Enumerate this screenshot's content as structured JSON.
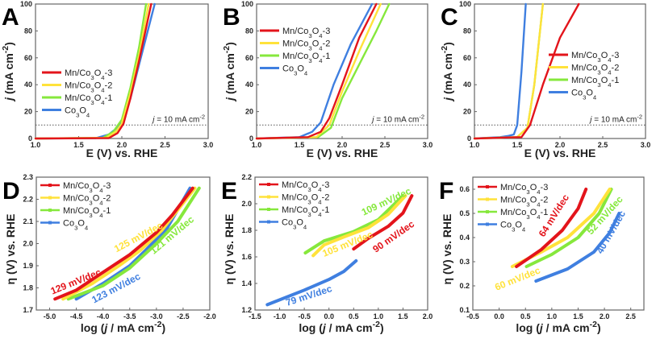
{
  "colors": {
    "Mn/Co3O4-3": "#e3141b",
    "Mn/Co3O4-2": "#ffe23a",
    "Mn/Co3O4-1": "#86e83c",
    "Co3O4": "#3f7fe0"
  },
  "chart_data": [
    {
      "panel": "A",
      "type": "line",
      "xlabel": "E (V) vs. RHE",
      "ylabel": "j (mA cm-2)",
      "xlim": [
        1.0,
        3.0
      ],
      "ylim": [
        0,
        100
      ],
      "xticks": [
        "1.0",
        "1.5",
        "2.0",
        "2.5",
        "3.0"
      ],
      "yticks": [
        "0",
        "20",
        "40",
        "60",
        "80",
        "100"
      ],
      "reference": {
        "y": 10,
        "label": "j = 10 mA cm-2"
      },
      "legend": "middle-left",
      "series": [
        {
          "name": "Mn/Co3O4-3",
          "points": [
            [
              1.0,
              0
            ],
            [
              1.85,
              0.3
            ],
            [
              1.95,
              4
            ],
            [
              2.02,
              11
            ],
            [
              2.1,
              30
            ],
            [
              2.2,
              58
            ],
            [
              2.34,
              100
            ]
          ]
        },
        {
          "name": "Mn/Co3O4-2",
          "points": [
            [
              1.0,
              0
            ],
            [
              1.82,
              0.5
            ],
            [
              1.93,
              5
            ],
            [
              2.0,
              11
            ],
            [
              2.1,
              34
            ],
            [
              2.2,
              62
            ],
            [
              2.31,
              100
            ]
          ]
        },
        {
          "name": "Mn/Co3O4-1",
          "points": [
            [
              1.0,
              0
            ],
            [
              1.78,
              0.5
            ],
            [
              1.9,
              5
            ],
            [
              2.0,
              14
            ],
            [
              2.1,
              38
            ],
            [
              2.2,
              68
            ],
            [
              2.28,
              100
            ]
          ]
        },
        {
          "name": "Co3O4",
          "points": [
            [
              1.0,
              0
            ],
            [
              1.7,
              0.3
            ],
            [
              1.85,
              3
            ],
            [
              1.95,
              8
            ],
            [
              2.0,
              12
            ],
            [
              2.1,
              30
            ],
            [
              2.2,
              55
            ],
            [
              2.3,
              80
            ],
            [
              2.38,
              100
            ]
          ]
        }
      ]
    },
    {
      "panel": "B",
      "type": "line",
      "xlabel": "E (V) vs. RHE",
      "ylabel": "j (mA cm-2)",
      "xlim": [
        1.0,
        3.0
      ],
      "ylim": [
        0,
        100
      ],
      "xticks": [
        "1.0",
        "1.5",
        "2.0",
        "2.5",
        "3.0"
      ],
      "yticks": [
        "0",
        "20",
        "40",
        "60",
        "80",
        "100"
      ],
      "reference": {
        "y": 10,
        "label": "j = 10 mA cm-2"
      },
      "legend": "top-left",
      "series": [
        {
          "name": "Mn/Co3O4-3",
          "points": [
            [
              1.0,
              0
            ],
            [
              1.6,
              1
            ],
            [
              1.75,
              5
            ],
            [
              1.85,
              15
            ],
            [
              2.0,
              40
            ],
            [
              2.2,
              75
            ],
            [
              2.4,
              100
            ]
          ]
        },
        {
          "name": "Mn/Co3O4-2",
          "points": [
            [
              1.0,
              0
            ],
            [
              1.7,
              1
            ],
            [
              1.85,
              10
            ],
            [
              2.0,
              35
            ],
            [
              2.2,
              65
            ],
            [
              2.45,
              100
            ]
          ]
        },
        {
          "name": "Mn/Co3O4-1",
          "points": [
            [
              1.0,
              0
            ],
            [
              1.72,
              1
            ],
            [
              1.87,
              8
            ],
            [
              2.0,
              30
            ],
            [
              2.2,
              55
            ],
            [
              2.4,
              80
            ],
            [
              2.55,
              100
            ]
          ]
        },
        {
          "name": "Co3O4",
          "points": [
            [
              1.0,
              0
            ],
            [
              1.5,
              1
            ],
            [
              1.65,
              5
            ],
            [
              1.75,
              12
            ],
            [
              1.9,
              40
            ],
            [
              2.1,
              70
            ],
            [
              2.35,
              100
            ]
          ]
        }
      ]
    },
    {
      "panel": "C",
      "type": "line",
      "xlabel": "E (V) vs. RHE",
      "ylabel": "j (mA cm-2)",
      "xlim": [
        1.0,
        3.0
      ],
      "ylim": [
        0,
        100
      ],
      "xticks": [
        "1.0",
        "1.5",
        "2.0",
        "2.5",
        "3.0"
      ],
      "yticks": [
        "0",
        "20",
        "40",
        "60",
        "80",
        "100"
      ],
      "reference": {
        "y": 10,
        "label": "j = 10 mA cm-2"
      },
      "legend": "top-right",
      "series": [
        {
          "name": "Mn/Co3O4-3",
          "points": [
            [
              1.0,
              0
            ],
            [
              1.55,
              1
            ],
            [
              1.65,
              10
            ],
            [
              1.8,
              40
            ],
            [
              2.0,
              75
            ],
            [
              2.22,
              100
            ]
          ]
        },
        {
          "name": "Mn/Co3O4-2",
          "points": [
            [
              1.0,
              0
            ],
            [
              1.5,
              1
            ],
            [
              1.62,
              8
            ],
            [
              1.7,
              40
            ],
            [
              1.8,
              100
            ]
          ]
        },
        {
          "name": "Mn/Co3O4-1",
          "points": [
            [
              1.0,
              0
            ],
            [
              1.5,
              1
            ],
            [
              1.62,
              8
            ],
            [
              1.7,
              40
            ],
            [
              1.8,
              100
            ]
          ]
        },
        {
          "name": "Co3O4",
          "points": [
            [
              1.0,
              0
            ],
            [
              1.3,
              1
            ],
            [
              1.4,
              2
            ],
            [
              1.46,
              3
            ],
            [
              1.5,
              10
            ],
            [
              1.55,
              50
            ],
            [
              1.6,
              100
            ]
          ]
        }
      ]
    },
    {
      "panel": "D",
      "type": "line",
      "xlabel": "log (j / mA cm-2)",
      "ylabel": "η (V) vs. RHE",
      "xlim": [
        -5.25,
        -2.0
      ],
      "ylim": [
        1.7,
        2.3
      ],
      "xticks": [
        "-5.0",
        "-4.5",
        "-4.0",
        "-3.5",
        "-3.0",
        "-2.5",
        "-2.0"
      ],
      "yticks": [
        "1.7",
        "1.8",
        "1.9",
        "2.0",
        "2.1",
        "2.2",
        "2.3"
      ],
      "legend": "top-left",
      "series": [
        {
          "name": "Mn/Co3O4-3",
          "points": [
            [
              -4.9,
              1.75
            ],
            [
              -4.5,
              1.79
            ],
            [
              -4.0,
              1.87
            ],
            [
              -3.5,
              1.95
            ],
            [
              -3.0,
              2.05
            ],
            [
              -2.7,
              2.13
            ],
            [
              -2.32,
              2.25
            ]
          ]
        },
        {
          "name": "Mn/Co3O4-2",
          "points": [
            [
              -4.75,
              1.75
            ],
            [
              -4.2,
              1.82
            ],
            [
              -3.7,
              1.9
            ],
            [
              -3.3,
              1.97
            ],
            [
              -2.9,
              2.06
            ],
            [
              -2.28,
              2.25
            ]
          ]
        },
        {
          "name": "Mn/Co3O4-1",
          "points": [
            [
              -4.65,
              1.75
            ],
            [
              -4.0,
              1.81
            ],
            [
              -3.5,
              1.89
            ],
            [
              -3.0,
              2.0
            ],
            [
              -2.6,
              2.1
            ],
            [
              -2.2,
              2.25
            ]
          ]
        },
        {
          "name": "Co3O4",
          "points": [
            [
              -4.5,
              1.75
            ],
            [
              -4.0,
              1.82
            ],
            [
              -3.5,
              1.9
            ],
            [
              -3.2,
              1.97
            ],
            [
              -2.8,
              2.07
            ],
            [
              -2.37,
              2.25
            ]
          ]
        }
      ],
      "annotations": [
        {
          "text": "129 mV/dec",
          "series": "Mn/Co3O4-3",
          "x": -4.95,
          "y": 1.77
        },
        {
          "text": "125 mV/dec",
          "series": "Mn/Co3O4-2",
          "x": -3.75,
          "y": 1.96
        },
        {
          "text": "121 mV/dec",
          "series": "Mn/Co3O4-1",
          "x": -3.05,
          "y": 1.95
        },
        {
          "text": "123 mV/dec",
          "series": "Co3O4",
          "x": -4.35,
          "y": 1.73
        }
      ]
    },
    {
      "panel": "E",
      "type": "line",
      "xlabel": "log (j / mA cm-2)",
      "ylabel": "η (V) vs. RHE",
      "xlim": [
        -1.5,
        2.0
      ],
      "ylim": [
        1.2,
        2.2
      ],
      "xticks": [
        "-1.5",
        "-1.0",
        "-0.5",
        "0.0",
        "0.5",
        "1.0",
        "1.5",
        "2.0"
      ],
      "yticks": [
        "1.2",
        "1.4",
        "1.6",
        "1.8",
        "2.0",
        "2.2"
      ],
      "legend": "top-left",
      "series": [
        {
          "name": "Mn/Co3O4-3",
          "points": [
            [
              0.5,
              1.66
            ],
            [
              0.8,
              1.74
            ],
            [
              1.2,
              1.83
            ],
            [
              1.5,
              1.93
            ],
            [
              1.68,
              2.06
            ]
          ]
        },
        {
          "name": "Mn/Co3O4-2",
          "points": [
            [
              -0.32,
              1.61
            ],
            [
              -0.1,
              1.69
            ],
            [
              0.3,
              1.75
            ],
            [
              0.8,
              1.82
            ],
            [
              1.2,
              1.92
            ],
            [
              1.55,
              2.06
            ]
          ]
        },
        {
          "name": "Mn/Co3O4-1",
          "points": [
            [
              -0.48,
              1.63
            ],
            [
              -0.1,
              1.72
            ],
            [
              0.5,
              1.79
            ],
            [
              1.0,
              1.88
            ],
            [
              1.5,
              2.06
            ]
          ]
        },
        {
          "name": "Co3O4",
          "points": [
            [
              -1.25,
              1.24
            ],
            [
              -0.5,
              1.35
            ],
            [
              0.0,
              1.43
            ],
            [
              0.3,
              1.49
            ],
            [
              0.55,
              1.57
            ]
          ]
        }
      ],
      "annotations": [
        {
          "text": "109 mV/dec",
          "series": "Mn/Co3O4-1",
          "x": 0.7,
          "y": 1.91
        },
        {
          "text": "105 mV/dec",
          "series": "Mn/Co3O4-2",
          "x": -0.1,
          "y": 1.6
        },
        {
          "text": "90 mV/dec",
          "series": "Mn/Co3O4-3",
          "x": 0.85,
          "y": 1.66
        },
        {
          "text": "79 mV/dec",
          "series": "Co3O4",
          "x": -0.85,
          "y": 1.23
        }
      ]
    },
    {
      "panel": "F",
      "type": "line",
      "xlabel": "log (j / mA cm-2)",
      "ylabel": "η (V) vs. RHE",
      "xlim": [
        -0.5,
        2.75
      ],
      "ylim": [
        0.1,
        0.65
      ],
      "xticks": [
        "-0.5",
        "0.0",
        "0.5",
        "1.0",
        "1.5",
        "2.0",
        "2.5"
      ],
      "yticks": [
        "0.1",
        "0.2",
        "0.3",
        "0.4",
        "0.5",
        "0.6"
      ],
      "legend": "top-left",
      "series": [
        {
          "name": "Mn/Co3O4-3",
          "points": [
            [
              0.33,
              0.28
            ],
            [
              0.8,
              0.35
            ],
            [
              1.2,
              0.43
            ],
            [
              1.5,
              0.52
            ],
            [
              1.65,
              0.6
            ]
          ]
        },
        {
          "name": "Mn/Co3O4-2",
          "points": [
            [
              0.25,
              0.28
            ],
            [
              0.8,
              0.34
            ],
            [
              1.3,
              0.4
            ],
            [
              1.8,
              0.5
            ],
            [
              2.1,
              0.6
            ]
          ]
        },
        {
          "name": "Mn/Co3O4-1",
          "points": [
            [
              0.52,
              0.28
            ],
            [
              1.0,
              0.33
            ],
            [
              1.5,
              0.4
            ],
            [
              1.9,
              0.5
            ],
            [
              2.13,
              0.6
            ]
          ]
        },
        {
          "name": "Co3O4",
          "points": [
            [
              0.7,
              0.22
            ],
            [
              1.3,
              0.27
            ],
            [
              1.8,
              0.34
            ],
            [
              2.1,
              0.42
            ],
            [
              2.28,
              0.5
            ]
          ]
        }
      ],
      "annotations": [
        {
          "text": "64 mV/dec",
          "series": "Mn/Co3O4-3",
          "x": 0.85,
          "y": 0.4
        },
        {
          "text": "60 mV/dec",
          "series": "Mn/Co3O4-2",
          "x": -0.05,
          "y": 0.18
        },
        {
          "text": "52 mV/dec",
          "series": "Mn/Co3O4-1",
          "x": 1.75,
          "y": 0.41
        },
        {
          "text": "40 mV/dec",
          "series": "Co3O4",
          "x": 1.95,
          "y": 0.33
        }
      ]
    }
  ]
}
